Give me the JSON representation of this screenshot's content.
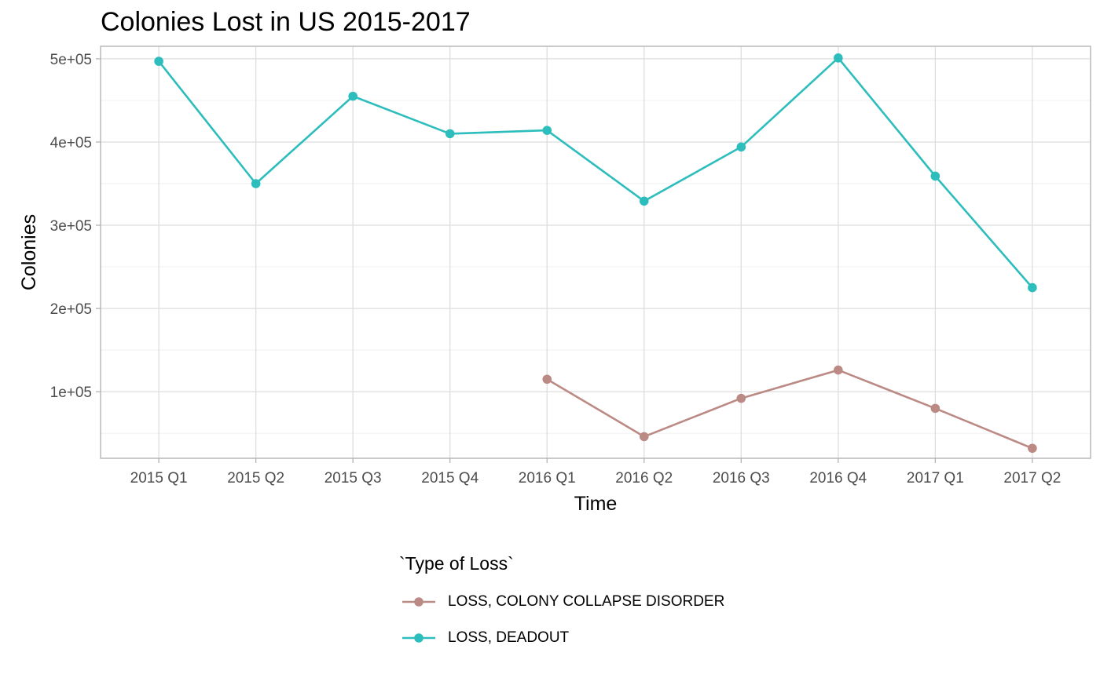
{
  "chart_data": {
    "type": "line",
    "title": "Colonies Lost in US 2015-2017",
    "xlabel": "Time",
    "ylabel": "Colonies",
    "categories": [
      "2015 Q1",
      "2015 Q2",
      "2015 Q3",
      "2015 Q4",
      "2016 Q1",
      "2016 Q2",
      "2016 Q3",
      "2016 Q4",
      "2017 Q1",
      "2017 Q2"
    ],
    "yticks": [
      100000,
      200000,
      300000,
      400000,
      500000
    ],
    "ytick_labels": [
      "1e+05",
      "2e+05",
      "3e+05",
      "4e+05",
      "5e+05"
    ],
    "ylim": [
      20000,
      515000
    ],
    "grid": true,
    "legend": {
      "title": "`Type of Loss`",
      "position": "bottom"
    },
    "series": [
      {
        "name": "LOSS, COLONY COLLAPSE DISORDER",
        "color": "#BC8A84",
        "values": [
          null,
          null,
          null,
          null,
          115000,
          46000,
          92000,
          126000,
          80000,
          32000
        ]
      },
      {
        "name": "LOSS, DEADOUT",
        "color": "#2DBDBD",
        "values": [
          497000,
          350000,
          455000,
          410000,
          414000,
          329000,
          394000,
          501000,
          359000,
          225000
        ]
      }
    ]
  }
}
